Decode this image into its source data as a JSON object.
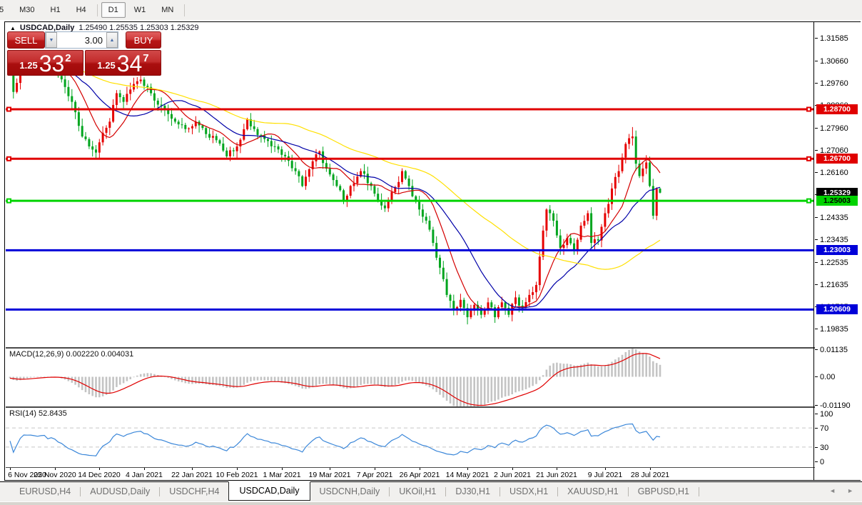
{
  "toolbar": {
    "buttons": [
      "5",
      "M30",
      "H1",
      "H4",
      "D1",
      "W1",
      "MN"
    ],
    "active": "D1"
  },
  "chart_header": {
    "collapse_icon": "▲",
    "title": "USDCAD,Daily",
    "ohlc": "1.25490 1.25535 1.25303 1.25329"
  },
  "trade_panel": {
    "sell_label": "SELL",
    "buy_label": "BUY",
    "volume": "3.00",
    "spinner_down_icon": "▼",
    "spinner_up_icon": "▲",
    "sell_price": {
      "prefix": "1.25",
      "big": "33",
      "sup": "2"
    },
    "buy_price": {
      "prefix": "1.25",
      "big": "34",
      "sup": "7"
    }
  },
  "price_axis": {
    "ticks": [
      "1.31585",
      "1.30660",
      "1.29760",
      "1.28860",
      "1.27960",
      "1.27060",
      "1.26160",
      "1.25260",
      "1.24335",
      "1.23435",
      "1.22535",
      "1.21635",
      "1.20735",
      "1.19835"
    ],
    "tags": [
      {
        "label": "1.28700",
        "price": 1.287,
        "bg": "#e00000",
        "fg": "#ffffff"
      },
      {
        "label": "1.26700",
        "price": 1.267,
        "bg": "#e00000",
        "fg": "#ffffff"
      },
      {
        "label": "1.25329",
        "price": 1.25329,
        "bg": "#000000",
        "fg": "#ffffff"
      },
      {
        "label": "1.25003",
        "price": 1.25003,
        "bg": "#00d300",
        "fg": "#000000"
      },
      {
        "label": "1.23003",
        "price": 1.23003,
        "bg": "#0000d9",
        "fg": "#ffffff"
      },
      {
        "label": "1.20609",
        "price": 1.20609,
        "bg": "#0000d9",
        "fg": "#ffffff"
      }
    ]
  },
  "date_axis": {
    "ticks": [
      {
        "bar": 0,
        "label": "6 Nov 2020"
      },
      {
        "bar": 13,
        "label": "25 Nov 2020"
      },
      {
        "bar": 26,
        "label": "14 Dec 2020"
      },
      {
        "bar": 39,
        "label": "4 Jan 2021"
      },
      {
        "bar": 53,
        "label": "22 Jan 2021"
      },
      {
        "bar": 66,
        "label": "10 Feb 2021"
      },
      {
        "bar": 79,
        "label": "1 Mar 2021"
      },
      {
        "bar": 93,
        "label": "19 Mar 2021"
      },
      {
        "bar": 106,
        "label": "7 Apr 2021"
      },
      {
        "bar": 119,
        "label": "26 Apr 2021"
      },
      {
        "bar": 133,
        "label": "14 May 2021"
      },
      {
        "bar": 146,
        "label": "2 Jun 2021"
      },
      {
        "bar": 159,
        "label": "21 Jun 2021"
      },
      {
        "bar": 173,
        "label": "9 Jul 2021"
      },
      {
        "bar": 186,
        "label": "28 Jul 2021"
      }
    ]
  },
  "indicators": {
    "macd": {
      "label": "MACD(12,26,9) 0.002220 0.004031",
      "scale_ticks": [
        {
          "v": 0.01135,
          "label": "0.01135"
        },
        {
          "v": 0.0,
          "label": "0.00"
        },
        {
          "v": -0.0119,
          "label": "-0.01190"
        }
      ]
    },
    "rsi": {
      "label": "RSI(14) 52.8435",
      "scale_ticks": [
        {
          "v": 100,
          "label": "100"
        },
        {
          "v": 70,
          "label": "70"
        },
        {
          "v": 30,
          "label": "30"
        },
        {
          "v": 0,
          "label": "0"
        }
      ],
      "levels": [
        70,
        30
      ]
    }
  },
  "tabs": {
    "items": [
      "EURUSD,H4",
      "AUDUSD,Daily",
      "USDCHF,H4",
      "USDCAD,Daily",
      "USDCNH,Daily",
      "UKOil,H1",
      "DJ30,H1",
      "USDX,H1",
      "XAUUSD,H1",
      "GBPUSD,H1"
    ],
    "active": "USDCAD,Daily",
    "left_arrow": "◄",
    "right_arrow": "►"
  },
  "colors": {
    "candle_up": "#e60000",
    "candle_down": "#00a51e",
    "ma_fast": "#d40000",
    "ma_mid": "#0000a8",
    "ma_slow": "#ffe000",
    "hline_red": "#e00000",
    "hline_green": "#00d300",
    "hline_blue": "#0000d9",
    "macd_hist": "#c4c4c4",
    "macd_signal": "#e00000",
    "rsi_line": "#3b87d9",
    "level_dash": "#c8c8c8"
  },
  "chart_data": {
    "type": "candlestick",
    "symbol": "USDCAD",
    "timeframe": "Daily",
    "bars": 190,
    "price_ylim": [
      1.19091,
      1.3222
    ],
    "color_convention": "red = up bar, green = down bar",
    "last_bar": {
      "open": 1.2549,
      "high": 1.25535,
      "low": 1.25303,
      "close": 1.25329
    },
    "sell_quote": "1.25332",
    "buy_quote": "1.25347",
    "close_path_anchors": [
      [
        0,
        1.3035
      ],
      [
        1,
        1.294
      ],
      [
        4,
        1.306
      ],
      [
        9,
        1.3055
      ],
      [
        13,
        1.303
      ],
      [
        16,
        1.296
      ],
      [
        18,
        1.29
      ],
      [
        21,
        1.276
      ],
      [
        23,
        1.272
      ],
      [
        25,
        1.2695
      ],
      [
        27,
        1.2775
      ],
      [
        29,
        1.282
      ],
      [
        31,
        1.2935
      ],
      [
        33,
        1.29
      ],
      [
        35,
        1.295
      ],
      [
        38,
        1.299
      ],
      [
        40,
        1.296
      ],
      [
        42,
        1.2905
      ],
      [
        45,
        1.287
      ],
      [
        48,
        1.282
      ],
      [
        51,
        1.279
      ],
      [
        54,
        1.282
      ],
      [
        57,
        1.277
      ],
      [
        60,
        1.2745
      ],
      [
        63,
        1.268
      ],
      [
        66,
        1.272
      ],
      [
        69,
        1.283
      ],
      [
        71,
        1.279
      ],
      [
        74,
        1.275
      ],
      [
        77,
        1.272
      ],
      [
        80,
        1.268
      ],
      [
        83,
        1.262
      ],
      [
        85,
        1.256
      ],
      [
        88,
        1.266
      ],
      [
        90,
        1.27
      ],
      [
        92,
        1.263
      ],
      [
        95,
        1.256
      ],
      [
        97,
        1.25
      ],
      [
        99,
        1.256
      ],
      [
        102,
        1.262
      ],
      [
        105,
        1.256
      ],
      [
        107,
        1.25
      ],
      [
        109,
        1.247
      ],
      [
        112,
        1.2555
      ],
      [
        114,
        1.262
      ],
      [
        116,
        1.256
      ],
      [
        118,
        1.25
      ],
      [
        121,
        1.242
      ],
      [
        123,
        1.233
      ],
      [
        125,
        1.223
      ],
      [
        127,
        1.212
      ],
      [
        129,
        1.206
      ],
      [
        131,
        1.21
      ],
      [
        133,
        1.203
      ],
      [
        135,
        1.208
      ],
      [
        137,
        1.204
      ],
      [
        139,
        1.209
      ],
      [
        141,
        1.203
      ],
      [
        143,
        1.209
      ],
      [
        145,
        1.204
      ],
      [
        147,
        1.211
      ],
      [
        149,
        1.207
      ],
      [
        151,
        1.212
      ],
      [
        153,
        1.216
      ],
      [
        155,
        1.238
      ],
      [
        156,
        1.2465
      ],
      [
        158,
        1.242
      ],
      [
        160,
        1.231
      ],
      [
        162,
        1.235
      ],
      [
        164,
        1.23
      ],
      [
        166,
        1.24
      ],
      [
        168,
        1.245
      ],
      [
        169,
        1.233
      ],
      [
        171,
        1.234
      ],
      [
        173,
        1.245
      ],
      [
        175,
        1.255
      ],
      [
        177,
        1.262
      ],
      [
        179,
        1.273
      ],
      [
        181,
        1.276
      ],
      [
        182,
        1.265
      ],
      [
        183,
        1.26
      ],
      [
        185,
        1.2655
      ],
      [
        186,
        1.256
      ],
      [
        187,
        1.244
      ],
      [
        188,
        1.2549
      ],
      [
        189,
        1.25329
      ]
    ],
    "hlines": [
      {
        "price": 1.287,
        "color": "#e00000",
        "handles": true
      },
      {
        "price": 1.267,
        "color": "#e00000",
        "handles": true
      },
      {
        "price": 1.25003,
        "color": "#00d300",
        "handles": true
      },
      {
        "price": 1.23003,
        "color": "#0000d9",
        "handles": false
      },
      {
        "price": 1.20609,
        "color": "#0000d9",
        "handles": false
      }
    ],
    "moving_averages": [
      {
        "period": 10,
        "color": "#d40000"
      },
      {
        "period": 21,
        "color": "#0000a8"
      },
      {
        "period": 55,
        "color": "#ffe000"
      }
    ],
    "macd": {
      "fast": 12,
      "slow": 26,
      "signal": 9,
      "ylim": [
        -0.01238,
        0.01178
      ]
    },
    "rsi": {
      "period": 14,
      "ylim": [
        -12,
        112
      ],
      "current": 52.8435
    }
  }
}
